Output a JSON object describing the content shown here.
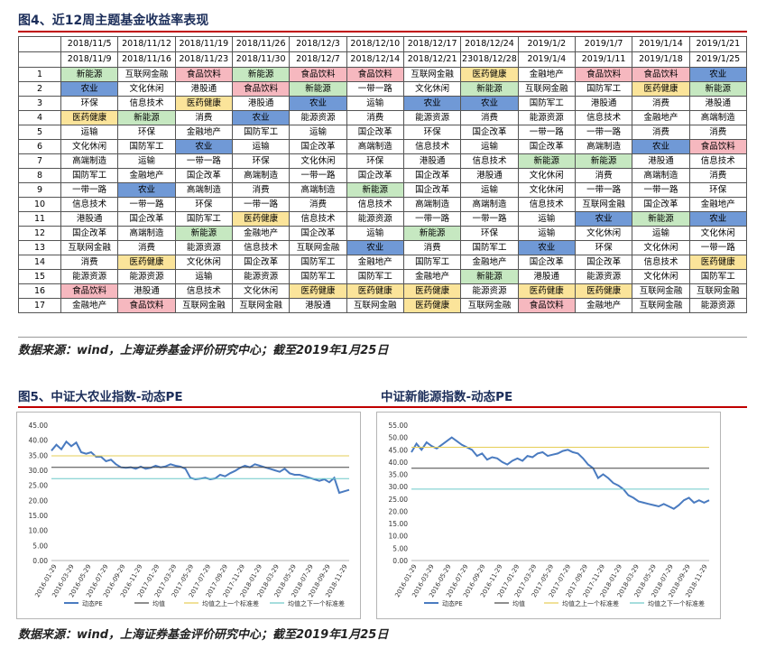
{
  "table": {
    "title": "图4、近12周主题基金收益率表现",
    "start_dates": [
      "2018/11/5",
      "2018/11/12",
      "2018/11/19",
      "2018/11/26",
      "2018/12/3",
      "2018/12/10",
      "2018/12/17",
      "2018/12/24",
      "2019/1/2",
      "2019/1/7",
      "2019/1/14",
      "2019/1/21"
    ],
    "end_dates": [
      "2018/11/9",
      "2018/11/16",
      "2018/11/23",
      "2018/11/30",
      "2018/12/7",
      "2018/12/14",
      "2018/12/21",
      "23018/12/28",
      "2019/1/4",
      "2019/1/11",
      "2019/1/18",
      "2019/1/25"
    ],
    "rows": [
      [
        "1",
        "新能源",
        "互联网金融",
        "食品饮料",
        "新能源",
        "食品饮料",
        "食品饮料",
        "互联网金融",
        "医药健康",
        "金融地产",
        "食品饮料",
        "食品饮料",
        "农业"
      ],
      [
        "2",
        "农业",
        "文化休闲",
        "港股通",
        "食品饮料",
        "新能源",
        "一带一路",
        "文化休闲",
        "新能源",
        "互联网金融",
        "国防军工",
        "医药健康",
        "新能源"
      ],
      [
        "3",
        "环保",
        "信息技术",
        "医药健康",
        "港股通",
        "农业",
        "运输",
        "农业",
        "农业",
        "国防军工",
        "港股通",
        "消费",
        "港股通"
      ],
      [
        "4",
        "医药健康",
        "新能源",
        "消费",
        "农业",
        "能源资源",
        "消费",
        "能源资源",
        "消费",
        "能源资源",
        "信息技术",
        "金融地产",
        "高端制造"
      ],
      [
        "5",
        "运输",
        "环保",
        "金融地产",
        "国防军工",
        "运输",
        "国企改革",
        "环保",
        "国企改革",
        "一带一路",
        "一带一路",
        "消费",
        "消费"
      ],
      [
        "6",
        "文化休闲",
        "国防军工",
        "农业",
        "运输",
        "国企改革",
        "高端制造",
        "信息技术",
        "运输",
        "国企改革",
        "高端制造",
        "农业",
        "食品饮料"
      ],
      [
        "7",
        "高端制造",
        "运输",
        "一带一路",
        "环保",
        "文化休闲",
        "环保",
        "港股通",
        "信息技术",
        "新能源",
        "新能源",
        "港股通",
        "信息技术"
      ],
      [
        "8",
        "国防军工",
        "金融地产",
        "国企改革",
        "高端制造",
        "一带一路",
        "国企改革",
        "国企改革",
        "港股通",
        "文化休闲",
        "消费",
        "高端制造",
        "消费"
      ],
      [
        "9",
        "一带一路",
        "农业",
        "高端制造",
        "消费",
        "高端制造",
        "新能源",
        "国企改革",
        "运输",
        "文化休闲",
        "一带一路",
        "一带一路",
        "环保"
      ],
      [
        "10",
        "信息技术",
        "一带一路",
        "环保",
        "一带一路",
        "消费",
        "信息技术",
        "高端制造",
        "高端制造",
        "信息技术",
        "互联网金融",
        "国企改革",
        "金融地产"
      ],
      [
        "11",
        "港股通",
        "国企改革",
        "国防军工",
        "医药健康",
        "信息技术",
        "能源资源",
        "一带一路",
        "一带一路",
        "运输",
        "农业",
        "新能源",
        "农业"
      ],
      [
        "12",
        "国企改革",
        "高端制造",
        "新能源",
        "金融地产",
        "国企改革",
        "运输",
        "新能源",
        "环保",
        "运输",
        "文化休闲",
        "运输",
        "文化休闲"
      ],
      [
        "13",
        "互联网金融",
        "消费",
        "能源资源",
        "信息技术",
        "互联网金融",
        "农业",
        "消费",
        "国防军工",
        "农业",
        "环保",
        "文化休闲",
        "一带一路"
      ],
      [
        "14",
        "消费",
        "医药健康",
        "文化休闲",
        "国企改革",
        "国防军工",
        "金融地产",
        "国防军工",
        "金融地产",
        "国企改革",
        "国企改革",
        "信息技术",
        "医药健康"
      ],
      [
        "15",
        "能源资源",
        "能源资源",
        "运输",
        "能源资源",
        "国防军工",
        "国防军工",
        "金融地产",
        "新能源",
        "港股通",
        "能源资源",
        "文化休闲",
        "国防军工"
      ],
      [
        "16",
        "食品饮料",
        "港股通",
        "信息技术",
        "文化休闲",
        "医药健康",
        "医药健康",
        "医药健康",
        "能源资源",
        "医药健康",
        "医药健康",
        "互联网金融",
        "互联网金融"
      ],
      [
        "17",
        "金融地产",
        "食品饮料",
        "互联网金融",
        "互联网金融",
        "港股通",
        "互联网金融",
        "医药健康",
        "互联网金融",
        "食品饮料",
        "金融地产",
        "互联网金融",
        "能源资源"
      ]
    ],
    "highlight_colors": {
      "农业": "#7099d6",
      "新能源": "#c6e8c1",
      "食品饮料": "#f6b8bf",
      "医药健康": "#fbe49a"
    }
  },
  "source_note_1": "数据来源：wind，上海证券基金评价研究中心；截至2019年1月25日",
  "chart_titles": {
    "fig5": "图5、中证大农业指数-动态PE",
    "fig5b": "中证新能源指数-动态PE"
  },
  "source_note_2": "数据来源：wind，上海证券基金评价研究中心；截至2019年1月25日",
  "chart_data": [
    {
      "type": "line",
      "title": "",
      "ylim": [
        0,
        45
      ],
      "yticks": [
        "0.00",
        "5.00",
        "10.00",
        "15.00",
        "20.00",
        "25.00",
        "30.00",
        "35.00",
        "40.00",
        "45.00"
      ],
      "x_ticks": [
        "2016-01-29",
        "2016-03-29",
        "2016-05-29",
        "2016-07-29",
        "2016-09-29",
        "2016-11-29",
        "2017-01-29",
        "2017-03-29",
        "2017-05-29",
        "2017-07-29",
        "2017-09-29",
        "2017-11-29",
        "2018-01-29",
        "2018-03-29",
        "2018-05-29",
        "2018-07-29",
        "2018-09-29",
        "2018-11-29"
      ],
      "series": [
        {
          "name": "动态PE",
          "color": "#4a7bc0",
          "values": [
            36.5,
            38.5,
            37.0,
            39.5,
            38.0,
            39.2,
            36.0,
            35.5,
            36.0,
            34.5,
            34.5,
            33.0,
            33.5,
            32.0,
            31.0,
            30.8,
            31.0,
            30.5,
            31.2,
            30.5,
            30.8,
            31.5,
            31.0,
            31.3,
            32.0,
            31.5,
            31.2,
            30.5,
            27.5,
            27.0,
            27.2,
            27.5,
            27.0,
            27.3,
            28.5,
            28.0,
            29.0,
            29.8,
            30.8,
            31.5,
            31.0,
            32.0,
            31.5,
            31.0,
            30.5,
            30.0,
            29.5,
            30.5,
            29.0,
            28.5,
            28.5,
            28.0,
            27.5,
            27.0,
            26.5,
            27.0,
            26.0,
            27.5,
            22.5,
            23.0,
            23.5
          ]
        },
        {
          "name": "均值",
          "color": "#444444",
          "values": [
            31.0,
            31.0
          ]
        },
        {
          "name": "均值之上一个标准差",
          "color": "#e6cd55",
          "values": [
            34.8,
            34.8
          ]
        },
        {
          "name": "均值之下一个标准差",
          "color": "#6bc9c9",
          "values": [
            27.2,
            27.2
          ]
        }
      ],
      "legend": "bottom"
    },
    {
      "type": "line",
      "title": "",
      "ylim": [
        0,
        55
      ],
      "yticks": [
        "0.00",
        "5.00",
        "10.00",
        "15.00",
        "20.00",
        "25.00",
        "30.00",
        "35.00",
        "40.00",
        "45.00",
        "50.00",
        "55.00"
      ],
      "x_ticks": [
        "2016-01-29",
        "2016-03-29",
        "2016-05-29",
        "2016-07-29",
        "2016-09-29",
        "2016-11-29",
        "2017-01-29",
        "2017-03-29",
        "2017-05-29",
        "2017-07-29",
        "2017-09-29",
        "2017-11-29",
        "2018-01-29",
        "2018-03-29",
        "2018-05-29",
        "2018-07-29",
        "2018-09-29",
        "2018-11-29"
      ],
      "series": [
        {
          "name": "动态PE",
          "color": "#4a7bc0",
          "values": [
            44.0,
            47.5,
            45.0,
            48.0,
            46.5,
            45.5,
            47.0,
            48.5,
            50.0,
            48.5,
            47.0,
            46.0,
            45.0,
            42.5,
            43.5,
            41.0,
            42.0,
            41.5,
            40.0,
            39.0,
            40.5,
            41.5,
            40.5,
            42.5,
            42.0,
            43.5,
            44.0,
            42.5,
            43.0,
            43.5,
            44.5,
            45.0,
            44.0,
            43.5,
            41.5,
            39.0,
            37.5,
            33.5,
            35.0,
            33.5,
            31.5,
            30.5,
            29.0,
            26.5,
            25.5,
            24.0,
            23.5,
            23.0,
            22.5,
            22.0,
            23.0,
            22.0,
            21.0,
            22.5,
            24.5,
            25.5,
            23.5,
            24.5,
            23.5,
            24.5
          ]
        },
        {
          "name": "均值",
          "color": "#444444",
          "values": [
            37.5,
            37.5
          ]
        },
        {
          "name": "均值之上一个标准差",
          "color": "#e6cd55",
          "values": [
            46.0,
            46.0
          ]
        },
        {
          "name": "均值之下一个标准差",
          "color": "#6bc9c9",
          "values": [
            29.0,
            29.0
          ]
        }
      ],
      "legend": "bottom"
    }
  ]
}
